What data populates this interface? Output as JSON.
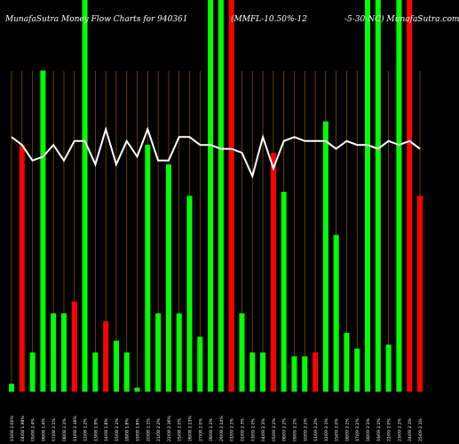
{
  "header": {
    "part1": "MunafaSutra  Money Flow  Charts for 940361",
    "part2": "(MMFL-10.50%-12",
    "part3": "-5-30-NC)  MunafaSutra.com"
  },
  "colors": {
    "background": "#000000",
    "up_bar": "#00ff00",
    "down_bar": "#ff0000",
    "grid_line": "#8a5a00",
    "line": "#ffffff",
    "text": "#ffffff"
  },
  "chart_data": {
    "type": "bar",
    "description_free": true,
    "categories": [
      "03/08 2:00% ",
      "04/08 1.98% ",
      "05/08 2.4% ",
      "06/08 1.4% ",
      "07/08 2.1% ",
      "08/08 2.1% ",
      "11/08 2.16% ",
      "12/08 2.2% ",
      "13/08 1.9% ",
      "14/08 1.8% ",
      "15/08 2.1% ",
      "18/08 1.8% ",
      "19/08 1.6% ",
      "20/08 2.1% ",
      "21/08 2.2% ",
      "22/08 2.16% ",
      "25/08 2.0% ",
      "26/08 2.13% ",
      "27/08 2.0% ",
      "28/08 2.1% ",
      "29/08 2.14% ",
      "01/09 2.1% ",
      "02/09 2.3% ",
      "03/09 2.0% ",
      "04/09 2.3% ",
      "05/09 2.1% ",
      "08/09 2.1% ",
      "09/09 2.1% ",
      "10/09 2.1% ",
      "11/09 2.2% ",
      "12/09 2.1% ",
      "15/09 2.0% ",
      "16/09 2.1% ",
      "17/09 2.2% ",
      "18/09 2.1% ",
      "19/09 2.1% ",
      "22/09 2.0% ",
      "23/09 2.1% ",
      "24/09 2.1% ",
      "25/09 2.1% "
    ],
    "values": [
      2,
      63,
      10,
      82,
      20,
      20,
      23,
      100,
      10,
      18,
      13,
      10,
      1,
      63,
      20,
      58,
      20,
      50,
      14,
      100,
      100,
      100,
      20,
      10,
      10,
      61,
      51,
      9,
      9,
      10,
      69,
      40,
      15,
      11,
      100,
      100,
      12,
      100,
      100,
      50
    ],
    "directions": [
      "up",
      "down",
      "up",
      "up",
      "up",
      "up",
      "down",
      "up",
      "up",
      "down",
      "up",
      "up",
      "up",
      "up",
      "up",
      "up",
      "up",
      "up",
      "up",
      "up",
      "up",
      "down",
      "up",
      "up",
      "up",
      "down",
      "up",
      "up",
      "up",
      "down",
      "up",
      "up",
      "up",
      "up",
      "up",
      "up",
      "up",
      "up",
      "down",
      "down"
    ],
    "line": [
      65,
      63,
      59,
      60,
      63,
      59,
      64,
      64,
      58,
      67,
      58,
      64,
      60,
      67,
      59,
      59,
      65,
      65,
      63,
      63,
      62,
      62,
      61,
      55,
      65,
      57,
      64,
      65,
      64,
      64,
      64,
      62,
      64,
      63,
      63,
      62,
      64,
      63,
      64,
      62
    ],
    "ylim": [
      0,
      100
    ],
    "grid": "vertical",
    "legend": "none"
  }
}
